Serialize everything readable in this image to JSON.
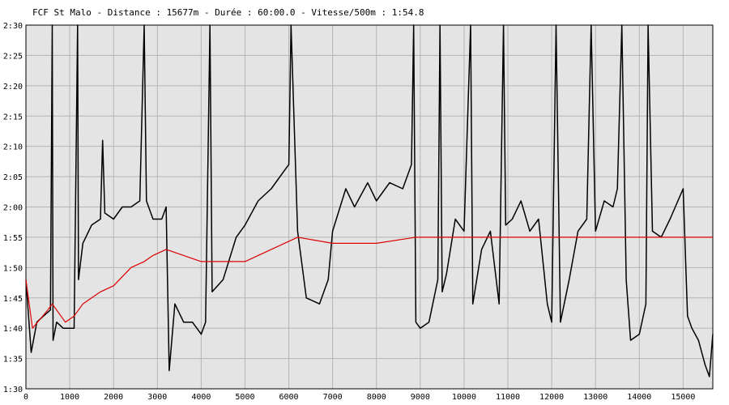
{
  "chart_data": {
    "type": "line",
    "title": "FCF St Malo - Distance : 15677m - Durée : 60:00.0 - Vitesse/500m : 1:54.8",
    "xlabel": "",
    "ylabel": "",
    "xlim": [
      0,
      15677
    ],
    "ylim_seconds": [
      90,
      150
    ],
    "y_axis_inverted": false,
    "grid": true,
    "legend": "none",
    "x_ticks": [
      0,
      1000,
      2000,
      3000,
      4000,
      5000,
      6000,
      7000,
      8000,
      9000,
      10000,
      11000,
      12000,
      13000,
      14000,
      15000
    ],
    "y_ticks": [
      "1:30",
      "1:35",
      "1:40",
      "1:45",
      "1:50",
      "1:55",
      "2:00",
      "2:05",
      "2:10",
      "2:15",
      "2:20",
      "2:25",
      "2:30"
    ],
    "colors": {
      "background": "#e4e4e4",
      "grid": "#b4b4b4",
      "pace": "#000000",
      "average": "#dd0000"
    },
    "series": [
      {
        "key": "pace",
        "values": [
          [
            0,
            108
          ],
          [
            120,
            96
          ],
          [
            250,
            101
          ],
          [
            400,
            102
          ],
          [
            560,
            103
          ],
          [
            600,
            150
          ],
          [
            620,
            98
          ],
          [
            700,
            101
          ],
          [
            850,
            100
          ],
          [
            1000,
            100
          ],
          [
            1100,
            100
          ],
          [
            1180,
            150
          ],
          [
            1200,
            108
          ],
          [
            1300,
            114
          ],
          [
            1500,
            117
          ],
          [
            1700,
            118
          ],
          [
            1750,
            131
          ],
          [
            1800,
            119
          ],
          [
            2000,
            118
          ],
          [
            2200,
            120
          ],
          [
            2400,
            120
          ],
          [
            2600,
            121
          ],
          [
            2700,
            150
          ],
          [
            2750,
            121
          ],
          [
            2900,
            118
          ],
          [
            3100,
            118
          ],
          [
            3200,
            120
          ],
          [
            3270,
            93
          ],
          [
            3400,
            104
          ],
          [
            3600,
            101
          ],
          [
            3800,
            101
          ],
          [
            4000,
            99
          ],
          [
            4100,
            101
          ],
          [
            4200,
            150
          ],
          [
            4250,
            106
          ],
          [
            4500,
            108
          ],
          [
            4800,
            115
          ],
          [
            5000,
            117
          ],
          [
            5300,
            121
          ],
          [
            5600,
            123
          ],
          [
            5900,
            126
          ],
          [
            6000,
            127
          ],
          [
            6050,
            150
          ],
          [
            6200,
            116
          ],
          [
            6400,
            105
          ],
          [
            6700,
            104
          ],
          [
            6900,
            108
          ],
          [
            7000,
            116
          ],
          [
            7300,
            123
          ],
          [
            7500,
            120
          ],
          [
            7800,
            124
          ],
          [
            8000,
            121
          ],
          [
            8300,
            124
          ],
          [
            8600,
            123
          ],
          [
            8800,
            127
          ],
          [
            8850,
            150
          ],
          [
            8900,
            101
          ],
          [
            9000,
            100
          ],
          [
            9200,
            101
          ],
          [
            9400,
            108
          ],
          [
            9450,
            150
          ],
          [
            9500,
            106
          ],
          [
            9600,
            109
          ],
          [
            9800,
            118
          ],
          [
            10000,
            116
          ],
          [
            10150,
            150
          ],
          [
            10200,
            104
          ],
          [
            10400,
            113
          ],
          [
            10600,
            116
          ],
          [
            10800,
            104
          ],
          [
            10900,
            150
          ],
          [
            10950,
            117
          ],
          [
            11100,
            118
          ],
          [
            11300,
            121
          ],
          [
            11500,
            116
          ],
          [
            11700,
            118
          ],
          [
            11900,
            104
          ],
          [
            12000,
            101
          ],
          [
            12100,
            150
          ],
          [
            12200,
            101
          ],
          [
            12400,
            108
          ],
          [
            12600,
            116
          ],
          [
            12800,
            118
          ],
          [
            12900,
            150
          ],
          [
            13000,
            116
          ],
          [
            13200,
            121
          ],
          [
            13400,
            120
          ],
          [
            13500,
            123
          ],
          [
            13600,
            150
          ],
          [
            13700,
            108
          ],
          [
            13800,
            98
          ],
          [
            14000,
            99
          ],
          [
            14150,
            104
          ],
          [
            14200,
            150
          ],
          [
            14300,
            116
          ],
          [
            14500,
            115
          ],
          [
            14700,
            118
          ],
          [
            15000,
            123
          ],
          [
            15100,
            102
          ],
          [
            15200,
            100
          ],
          [
            15350,
            98
          ],
          [
            15500,
            94
          ],
          [
            15600,
            92
          ],
          [
            15677,
            99
          ]
        ]
      },
      {
        "key": "average",
        "values": [
          [
            0,
            108
          ],
          [
            150,
            100
          ],
          [
            500,
            103
          ],
          [
            600,
            104
          ],
          [
            900,
            101
          ],
          [
            1100,
            102
          ],
          [
            1300,
            104
          ],
          [
            1500,
            105
          ],
          [
            1700,
            106
          ],
          [
            2000,
            107
          ],
          [
            2400,
            110
          ],
          [
            2700,
            111
          ],
          [
            2900,
            112
          ],
          [
            3200,
            113
          ],
          [
            3600,
            112
          ],
          [
            4000,
            111
          ],
          [
            4400,
            111
          ],
          [
            5000,
            111
          ],
          [
            5600,
            113
          ],
          [
            6200,
            115
          ],
          [
            7000,
            114
          ],
          [
            7500,
            114
          ],
          [
            8000,
            114
          ],
          [
            8900,
            115
          ],
          [
            9500,
            115
          ],
          [
            10000,
            115
          ],
          [
            11000,
            115
          ],
          [
            12000,
            115
          ],
          [
            13000,
            115
          ],
          [
            14000,
            115
          ],
          [
            15000,
            115
          ],
          [
            15677,
            115
          ]
        ]
      }
    ]
  }
}
